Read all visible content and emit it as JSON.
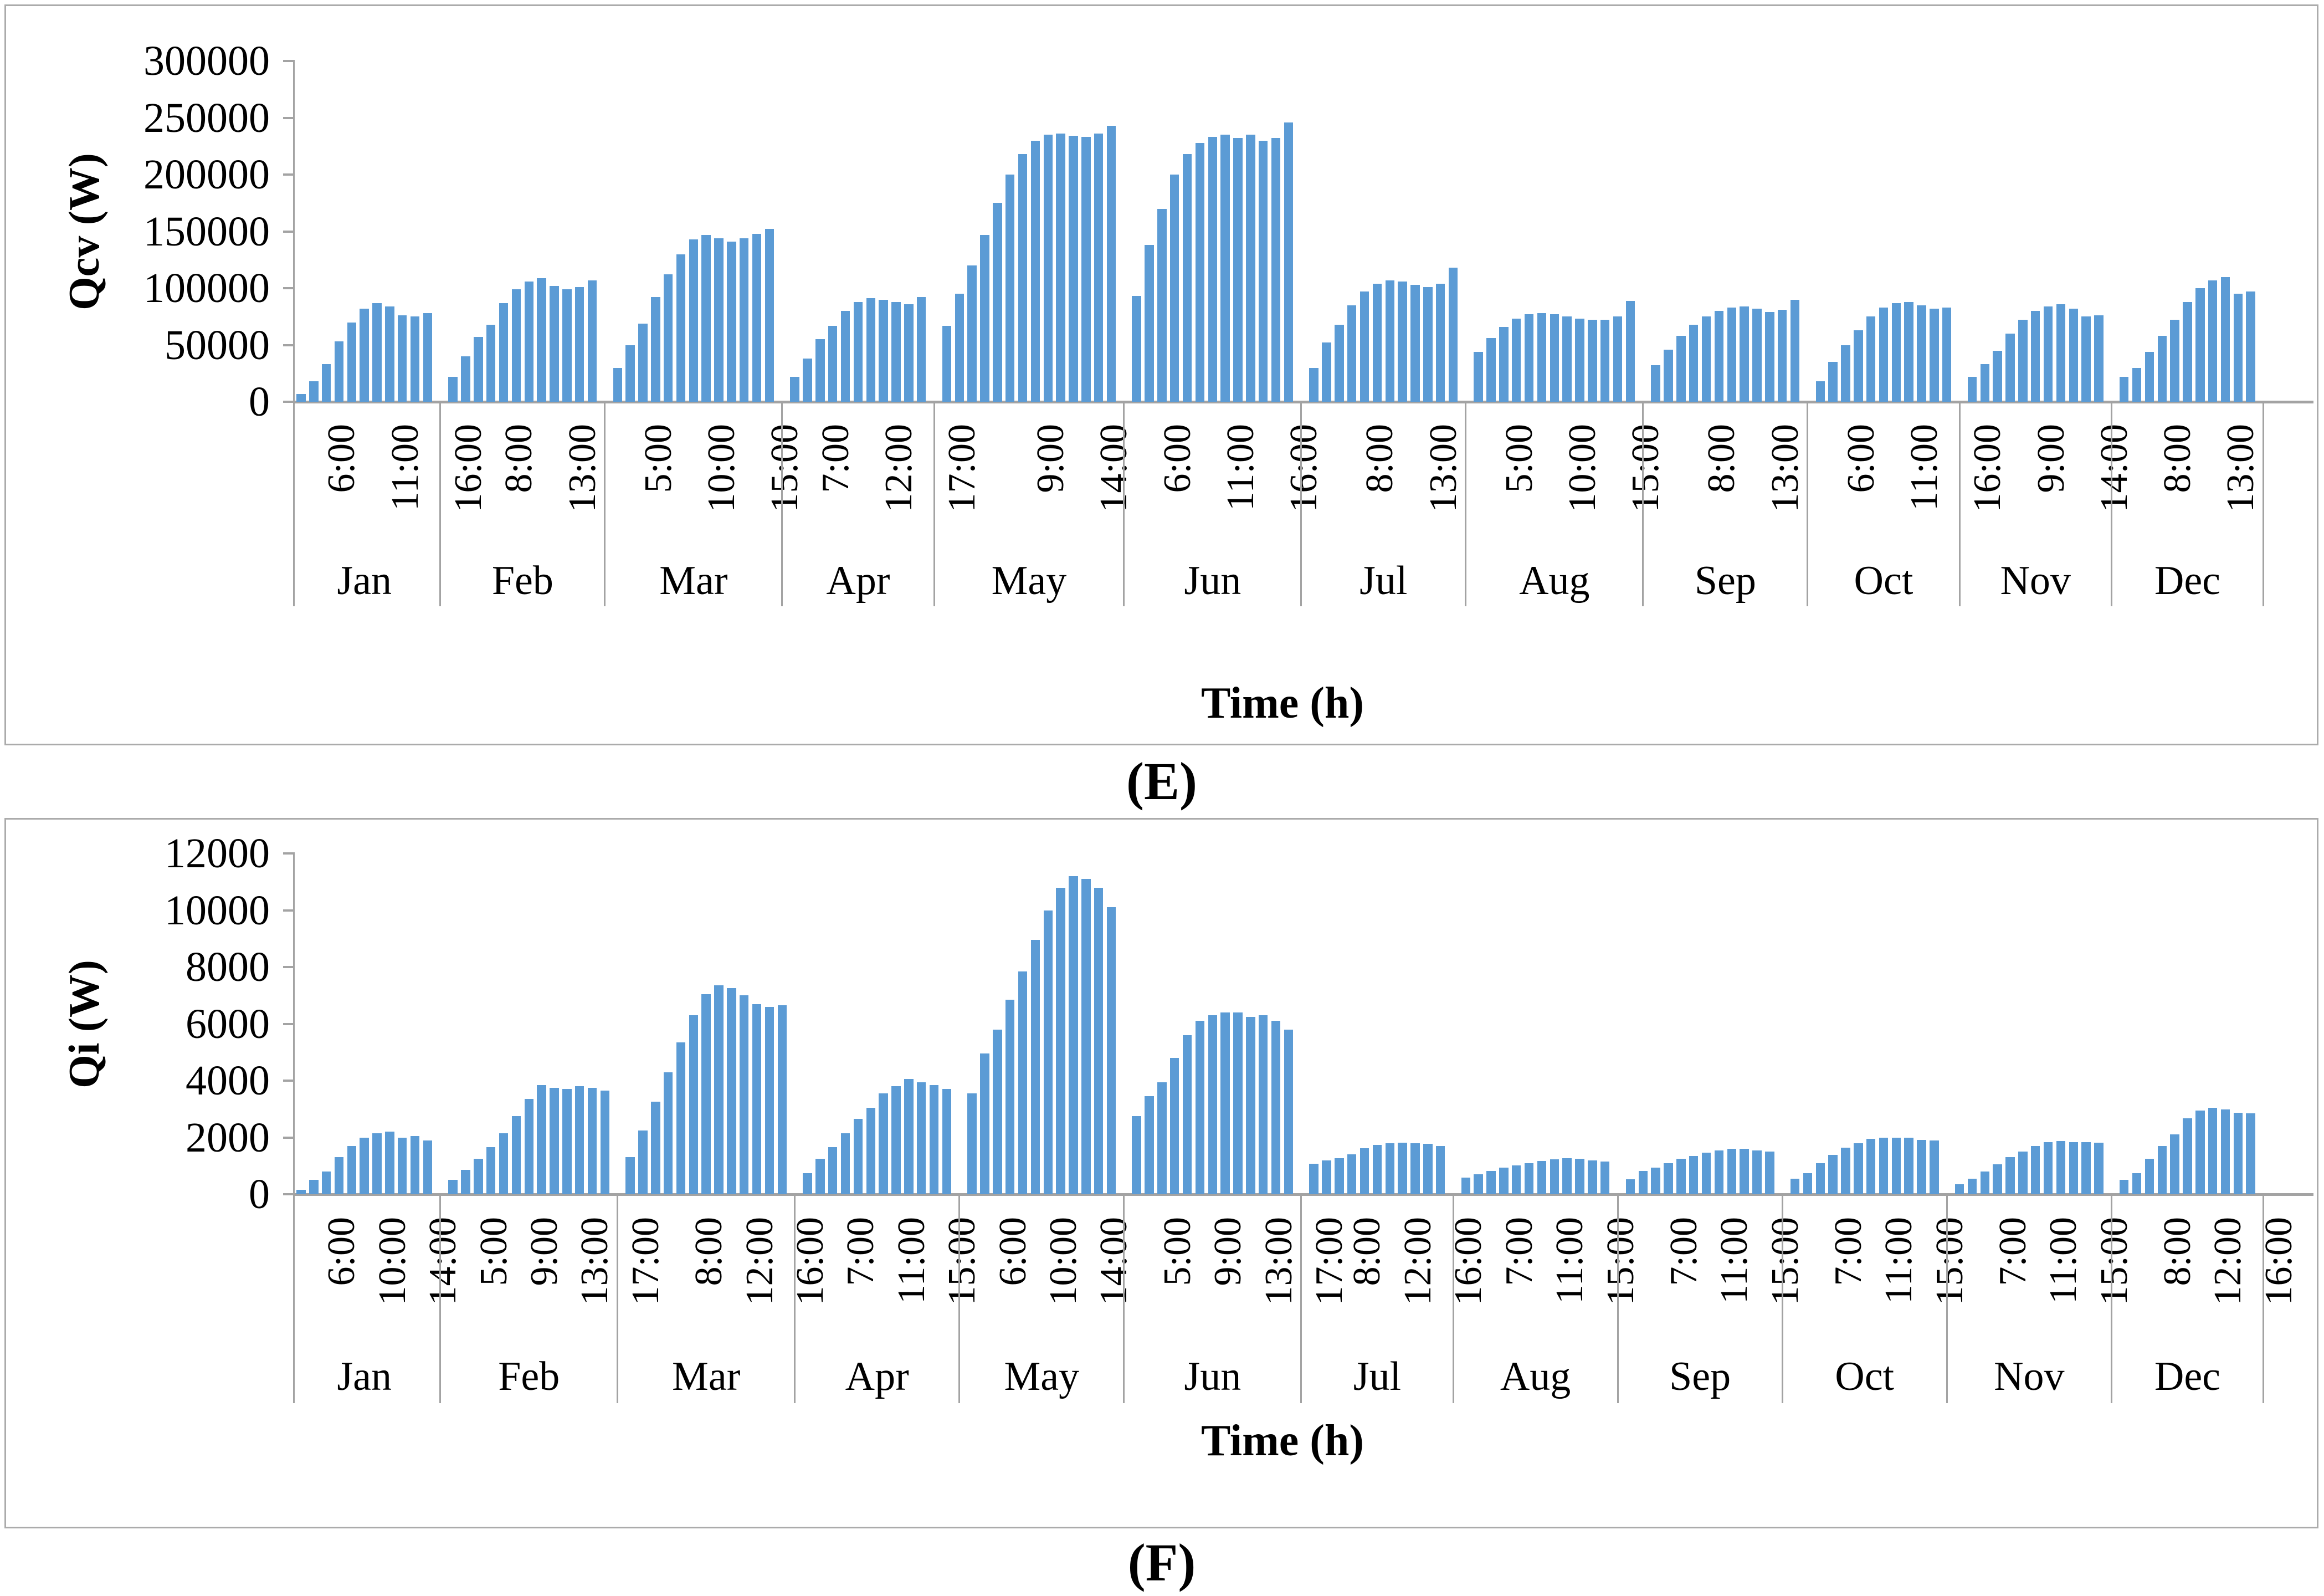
{
  "colors": {
    "bar": "#5B9BD5",
    "axis": "#A3A3A3",
    "frame": "#ABABAB",
    "text": "#000000"
  },
  "chart_data": [
    {
      "type": "bar",
      "panel": "E",
      "caption": "(E)",
      "ylabel": "Qcv (W)",
      "xlabel": "Time (h)",
      "ylim": [
        0,
        300000
      ],
      "grid": false,
      "legend": "none",
      "yticks": [
        0,
        50000,
        100000,
        150000,
        200000,
        250000,
        300000
      ],
      "ytick_labels": [
        "0",
        "50000",
        "100000",
        "150000",
        "200000",
        "250000",
        "300000"
      ],
      "months": [
        {
          "label": "Jan",
          "values": [
            7000,
            18000,
            33000,
            53000,
            70000,
            82000,
            87000,
            84000,
            76000,
            75000,
            78000
          ],
          "ticks": [
            {
              "label": "6:00",
              "bar": 0
            },
            {
              "label": "11:00",
              "bar": 5
            },
            {
              "label": "16:00",
              "bar": 10
            }
          ]
        },
        {
          "label": "Feb",
          "values": [
            22000,
            40000,
            57000,
            68000,
            87000,
            99000,
            106000,
            109000,
            102000,
            99000,
            101000,
            107000
          ],
          "ticks": [
            {
              "label": "8:00",
              "bar": 2
            },
            {
              "label": "13:00",
              "bar": 7
            }
          ]
        },
        {
          "label": "Mar",
          "values": [
            30000,
            50000,
            69000,
            92000,
            112000,
            130000,
            143000,
            147000,
            144000,
            141000,
            144000,
            148000,
            152000
          ],
          "ticks": [
            {
              "label": "5:00",
              "bar": 0
            },
            {
              "label": "10:00",
              "bar": 5
            },
            {
              "label": "15:00",
              "bar": 10
            }
          ]
        },
        {
          "label": "Apr",
          "values": [
            22000,
            38000,
            55000,
            67000,
            80000,
            88000,
            91000,
            90000,
            88000,
            86000,
            92000
          ],
          "ticks": [
            {
              "label": "7:00",
              "bar": 0
            },
            {
              "label": "12:00",
              "bar": 5
            },
            {
              "label": "17:00",
              "bar": 10
            }
          ]
        },
        {
          "label": "May",
          "values": [
            67000,
            95000,
            120000,
            147000,
            175000,
            200000,
            218000,
            230000,
            235000,
            236000,
            234000,
            233000,
            236000,
            243000
          ],
          "ticks": [
            {
              "label": "9:00",
              "bar": 5
            },
            {
              "label": "14:00",
              "bar": 10
            }
          ]
        },
        {
          "label": "Jun",
          "values": [
            93000,
            138000,
            170000,
            200000,
            218000,
            228000,
            233000,
            235000,
            232000,
            235000,
            230000,
            232000,
            246000
          ],
          "ticks": [
            {
              "label": "6:00",
              "bar": 0
            },
            {
              "label": "11:00",
              "bar": 5
            },
            {
              "label": "16:00",
              "bar": 10
            }
          ]
        },
        {
          "label": "Jul",
          "values": [
            30000,
            52000,
            68000,
            85000,
            97000,
            104000,
            107000,
            106000,
            103000,
            101000,
            104000,
            118000
          ],
          "ticks": [
            {
              "label": "8:00",
              "bar": 2
            },
            {
              "label": "13:00",
              "bar": 7
            }
          ]
        },
        {
          "label": "Aug",
          "values": [
            44000,
            56000,
            66000,
            73000,
            77000,
            78000,
            77000,
            75000,
            73000,
            72000,
            72000,
            75000,
            89000
          ],
          "ticks": [
            {
              "label": "5:00",
              "bar": 0
            },
            {
              "label": "10:00",
              "bar": 5
            },
            {
              "label": "15:00",
              "bar": 10
            }
          ]
        },
        {
          "label": "Sep",
          "values": [
            32000,
            46000,
            58000,
            68000,
            75000,
            80000,
            83000,
            84000,
            82000,
            79000,
            81000,
            90000
          ],
          "ticks": [
            {
              "label": "8:00",
              "bar": 2
            },
            {
              "label": "13:00",
              "bar": 7
            }
          ]
        },
        {
          "label": "Oct",
          "values": [
            18000,
            35000,
            50000,
            63000,
            75000,
            83000,
            87000,
            88000,
            85000,
            82000,
            83000
          ],
          "ticks": [
            {
              "label": "6:00",
              "bar": 0
            },
            {
              "label": "11:00",
              "bar": 5
            },
            {
              "label": "16:00",
              "bar": 10
            }
          ]
        },
        {
          "label": "Nov",
          "values": [
            22000,
            33000,
            45000,
            60000,
            72000,
            80000,
            84000,
            86000,
            82000,
            75000,
            76000
          ],
          "ticks": [
            {
              "label": "9:00",
              "bar": 3
            },
            {
              "label": "14:00",
              "bar": 8
            }
          ]
        },
        {
          "label": "Dec",
          "values": [
            22000,
            30000,
            44000,
            58000,
            72000,
            88000,
            100000,
            107000,
            110000,
            95000,
            97000
          ],
          "ticks": [
            {
              "label": "8:00",
              "bar": 1
            },
            {
              "label": "13:00",
              "bar": 6
            }
          ]
        }
      ]
    },
    {
      "type": "bar",
      "panel": "F",
      "caption": "(F)",
      "ylabel": "Qi (W)",
      "xlabel": "Time (h)",
      "ylim": [
        0,
        12000
      ],
      "grid": false,
      "legend": "none",
      "yticks": [
        0,
        2000,
        4000,
        6000,
        8000,
        10000,
        12000
      ],
      "ytick_labels": [
        "0",
        "2000",
        "4000",
        "6000",
        "8000",
        "10000",
        "12000"
      ],
      "months": [
        {
          "label": "Jan",
          "values": [
            150,
            500,
            800,
            1300,
            1700,
            2000,
            2150,
            2200,
            2000,
            2050,
            1900
          ],
          "ticks": [
            {
              "label": "6:00",
              "bar": 0
            },
            {
              "label": "10:00",
              "bar": 4
            },
            {
              "label": "14:00",
              "bar": 8
            }
          ]
        },
        {
          "label": "Feb",
          "values": [
            500,
            850,
            1250,
            1650,
            2150,
            2750,
            3350,
            3850,
            3750,
            3700,
            3800,
            3750,
            3650
          ],
          "ticks": [
            {
              "label": "5:00",
              "bar": 0
            },
            {
              "label": "9:00",
              "bar": 4
            },
            {
              "label": "13:00",
              "bar": 8
            },
            {
              "label": "17:00",
              "bar": 12
            }
          ]
        },
        {
          "label": "Mar",
          "values": [
            1300,
            2250,
            3250,
            4300,
            5350,
            6300,
            7050,
            7350,
            7250,
            7000,
            6700,
            6600,
            6650
          ],
          "ticks": [
            {
              "label": "8:00",
              "bar": 3
            },
            {
              "label": "12:00",
              "bar": 7
            },
            {
              "label": "16:00",
              "bar": 11
            }
          ]
        },
        {
          "label": "Apr",
          "values": [
            750,
            1250,
            1650,
            2150,
            2650,
            3050,
            3550,
            3800,
            4050,
            3950,
            3850,
            3700
          ],
          "ticks": [
            {
              "label": "7:00",
              "bar": 1
            },
            {
              "label": "11:00",
              "bar": 5
            },
            {
              "label": "15:00",
              "bar": 9
            }
          ]
        },
        {
          "label": "May",
          "values": [
            3550,
            4950,
            5800,
            6850,
            7850,
            8950,
            10000,
            10800,
            11200,
            11100,
            10800,
            10100
          ],
          "ticks": [
            {
              "label": "6:00",
              "bar": 0
            },
            {
              "label": "10:00",
              "bar": 4
            },
            {
              "label": "14:00",
              "bar": 8
            }
          ]
        },
        {
          "label": "Jun",
          "values": [
            2750,
            3450,
            3950,
            4800,
            5600,
            6100,
            6300,
            6400,
            6400,
            6250,
            6300,
            6100,
            5800
          ],
          "ticks": [
            {
              "label": "5:00",
              "bar": 0
            },
            {
              "label": "9:00",
              "bar": 4
            },
            {
              "label": "13:00",
              "bar": 8
            },
            {
              "label": "17:00",
              "bar": 12
            }
          ]
        },
        {
          "label": "Jul",
          "values": [
            1080,
            1200,
            1270,
            1400,
            1620,
            1730,
            1800,
            1820,
            1800,
            1780,
            1690
          ],
          "ticks": [
            {
              "label": "8:00",
              "bar": 1
            },
            {
              "label": "12:00",
              "bar": 5
            },
            {
              "label": "16:00",
              "bar": 9
            }
          ]
        },
        {
          "label": "Aug",
          "values": [
            580,
            700,
            820,
            930,
            1020,
            1100,
            1170,
            1220,
            1270,
            1250,
            1200,
            1150
          ],
          "ticks": [
            {
              "label": "7:00",
              "bar": 1
            },
            {
              "label": "11:00",
              "bar": 5
            },
            {
              "label": "15:00",
              "bar": 9
            }
          ]
        },
        {
          "label": "Sep",
          "values": [
            520,
            820,
            930,
            1090,
            1240,
            1350,
            1470,
            1540,
            1600,
            1600,
            1550,
            1500
          ],
          "ticks": [
            {
              "label": "7:00",
              "bar": 1
            },
            {
              "label": "11:00",
              "bar": 5
            },
            {
              "label": "15:00",
              "bar": 9
            }
          ]
        },
        {
          "label": "Oct",
          "values": [
            550,
            750,
            1100,
            1380,
            1630,
            1800,
            1960,
            2000,
            2000,
            2000,
            1920,
            1900
          ],
          "ticks": [
            {
              "label": "7:00",
              "bar": 1
            },
            {
              "label": "11:00",
              "bar": 5
            },
            {
              "label": "15:00",
              "bar": 9
            }
          ]
        },
        {
          "label": "Nov",
          "values": [
            350,
            550,
            800,
            1050,
            1300,
            1500,
            1700,
            1830,
            1880,
            1830,
            1840,
            1820
          ],
          "ticks": [
            {
              "label": "7:00",
              "bar": 1
            },
            {
              "label": "11:00",
              "bar": 5
            },
            {
              "label": "15:00",
              "bar": 9
            }
          ]
        },
        {
          "label": "Dec",
          "values": [
            500,
            750,
            1250,
            1700,
            2100,
            2670,
            2950,
            3050,
            2980,
            2870,
            2850
          ],
          "ticks": [
            {
              "label": "8:00",
              "bar": 1
            },
            {
              "label": "12:00",
              "bar": 5
            },
            {
              "label": "16:00",
              "bar": 9
            }
          ]
        }
      ]
    }
  ]
}
